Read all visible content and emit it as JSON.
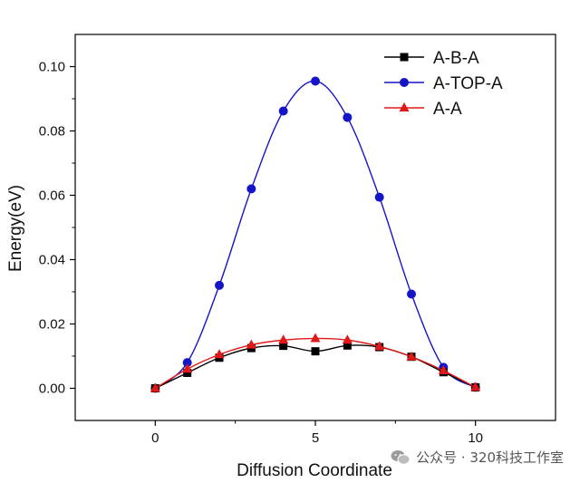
{
  "chart_data": {
    "type": "line",
    "xlabel": "Diffusion Coordinate",
    "ylabel": "Energy(eV)",
    "xlim": [
      -2.5,
      12.5
    ],
    "ylim": [
      -0.01,
      0.11
    ],
    "x_ticks": [
      0,
      5,
      10
    ],
    "x_tick_labels": [
      "0",
      "5",
      "10"
    ],
    "y_ticks": [
      0.0,
      0.02,
      0.04,
      0.06,
      0.08,
      0.1
    ],
    "y_tick_labels": [
      "0.00",
      "0.02",
      "0.04",
      "0.06",
      "0.08",
      "0.10"
    ],
    "legend_position": "top-right",
    "grid": false,
    "x": [
      0,
      1,
      2,
      3,
      4,
      5,
      6,
      7,
      8,
      9,
      10
    ],
    "series": [
      {
        "name": "A-B-A",
        "color": "#000000",
        "marker": "square",
        "values": [
          0.0,
          0.0048,
          0.0095,
          0.0125,
          0.0132,
          0.0115,
          0.0133,
          0.0128,
          0.0098,
          0.005,
          0.0003
        ]
      },
      {
        "name": "A-TOP-A",
        "color": "#1515c8",
        "marker": "circle",
        "values": [
          0.0,
          0.008,
          0.032,
          0.062,
          0.0862,
          0.0955,
          0.0842,
          0.0594,
          0.0293,
          0.0065,
          0.0003
        ]
      },
      {
        "name": "A-A",
        "color": "#e01818",
        "marker": "triangle",
        "values": [
          0.0,
          0.006,
          0.0105,
          0.0135,
          0.015,
          0.0155,
          0.015,
          0.013,
          0.0098,
          0.0055,
          0.0003
        ]
      }
    ]
  },
  "watermark": {
    "icon": "wechat-icon",
    "text": "公众号 · 320科技工作室"
  }
}
